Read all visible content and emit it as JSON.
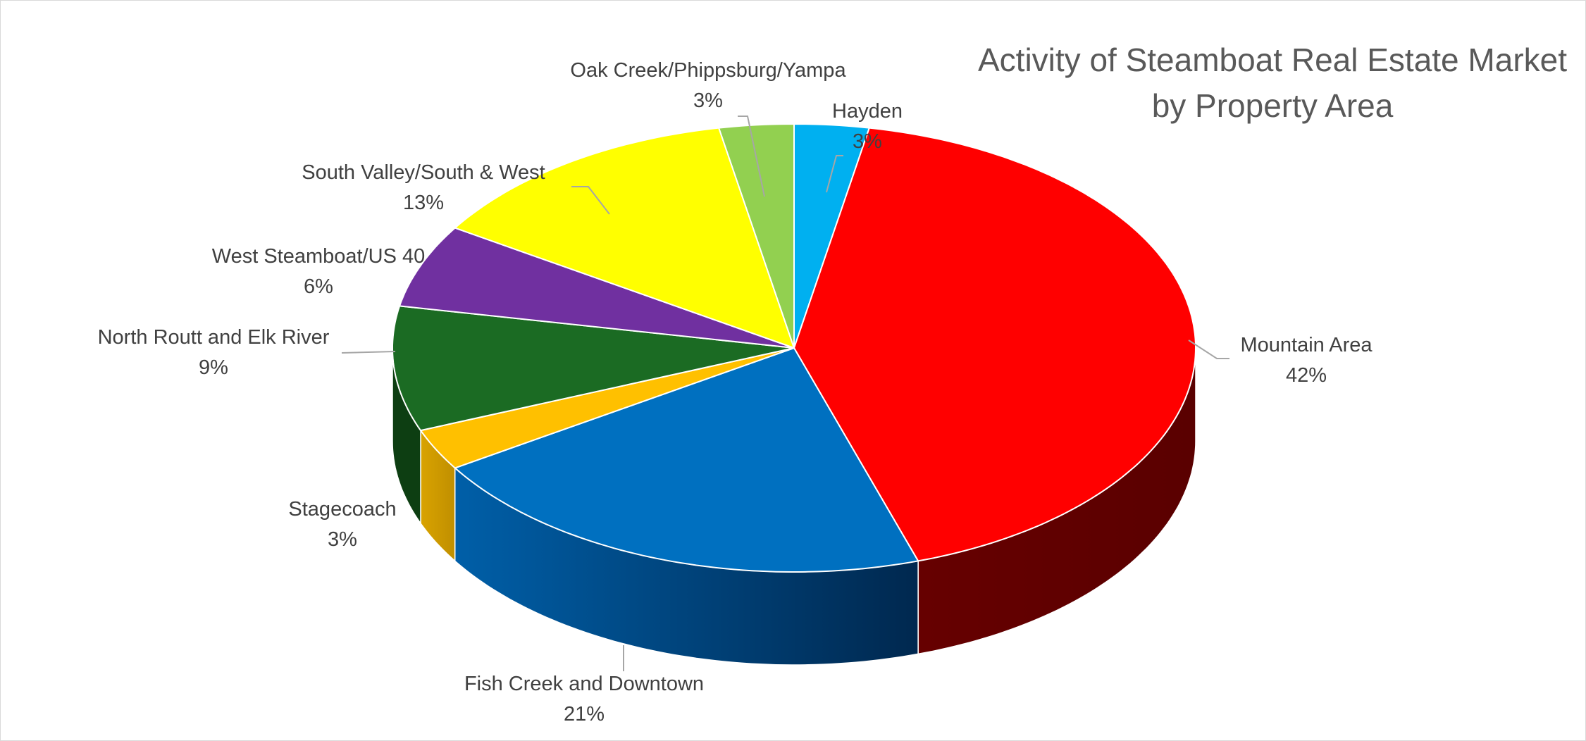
{
  "chart_data": {
    "type": "pie",
    "style": "3d",
    "title": [
      "Activity of Steamboat Real Estate Market",
      "by Property Area"
    ],
    "slices": [
      {
        "name": "Hayden",
        "value": 3,
        "label": "3%",
        "color": "#00B0F0",
        "side_color": "#0082B4"
      },
      {
        "name": "Mountain Area",
        "value": 42,
        "label": "42%",
        "color": "#FF0000",
        "side_color": "#660000"
      },
      {
        "name": "Fish Creek and Downtown",
        "value": 21,
        "label": "21%",
        "color": "#0070C0",
        "side_color": "#00284F"
      },
      {
        "name": "Stagecoach",
        "value": 3,
        "label": "3%",
        "color": "#FFC000",
        "side_color": "#C08F00"
      },
      {
        "name": "North Routt and Elk River",
        "value": 9,
        "label": "9%",
        "color": "#1B6B23",
        "side_color": "#0D3E12"
      },
      {
        "name": "West Steamboat/US 40",
        "value": 6,
        "label": "6%",
        "color": "#7030A0",
        "side_color": "#3E1A5A"
      },
      {
        "name": "South Valley/South & West",
        "value": 13,
        "label": "13%",
        "color": "#FFFF00",
        "side_color": "#A6A600"
      },
      {
        "name": "Oak Creek/Phippsburg/Yampa",
        "value": 3,
        "label": "3%",
        "color": "#92D050",
        "side_color": "#5E8C33"
      }
    ],
    "legend": "none",
    "data_labels": "category name and percentage, outside with leader lines"
  }
}
